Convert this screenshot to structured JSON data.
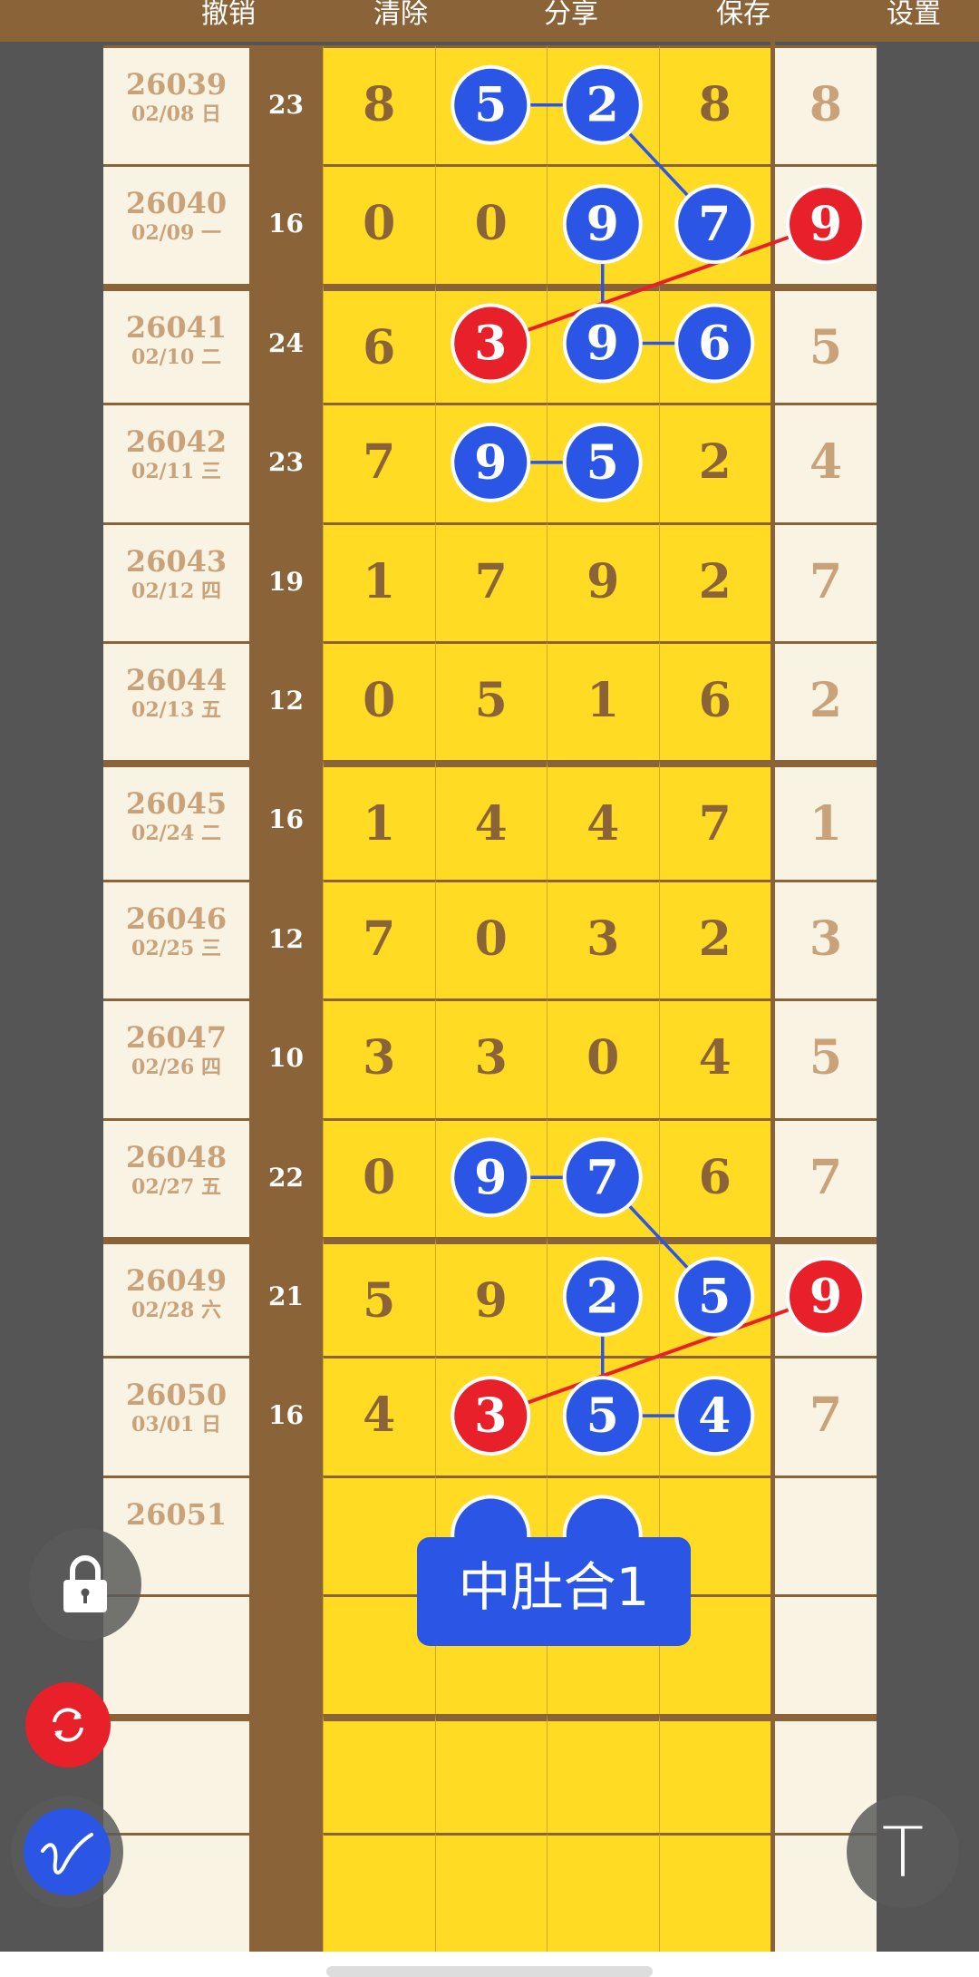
{
  "toolbar": {
    "undo": "撤销",
    "clear": "清除",
    "share": "分享",
    "save": "保存",
    "settings": "设置"
  },
  "rows": [
    {
      "issue": "26039",
      "date": "02/08 日",
      "sum": "23",
      "digits": [
        "8",
        "5",
        "2",
        "8"
      ],
      "right": "8"
    },
    {
      "issue": "26040",
      "date": "02/09 一",
      "sum": "16",
      "digits": [
        "0",
        "0",
        "9",
        "7"
      ],
      "right": "9"
    },
    {
      "issue": "26041",
      "date": "02/10 二",
      "sum": "24",
      "digits": [
        "6",
        "3",
        "9",
        "6"
      ],
      "right": "5"
    },
    {
      "issue": "26042",
      "date": "02/11 三",
      "sum": "23",
      "digits": [
        "7",
        "9",
        "5",
        "2"
      ],
      "right": "4"
    },
    {
      "issue": "26043",
      "date": "02/12 四",
      "sum": "19",
      "digits": [
        "1",
        "7",
        "9",
        "2"
      ],
      "right": "7"
    },
    {
      "issue": "26044",
      "date": "02/13 五",
      "sum": "12",
      "digits": [
        "0",
        "5",
        "1",
        "6"
      ],
      "right": "2"
    },
    {
      "issue": "26045",
      "date": "02/24 二",
      "sum": "16",
      "digits": [
        "1",
        "4",
        "4",
        "7"
      ],
      "right": "1"
    },
    {
      "issue": "26046",
      "date": "02/25 三",
      "sum": "12",
      "digits": [
        "7",
        "0",
        "3",
        "2"
      ],
      "right": "3"
    },
    {
      "issue": "26047",
      "date": "02/26 四",
      "sum": "10",
      "digits": [
        "3",
        "3",
        "0",
        "4"
      ],
      "right": "5"
    },
    {
      "issue": "26048",
      "date": "02/27 五",
      "sum": "22",
      "digits": [
        "0",
        "9",
        "7",
        "6"
      ],
      "right": "7"
    },
    {
      "issue": "26049",
      "date": "02/28 六",
      "sum": "21",
      "digits": [
        "5",
        "9",
        "2",
        "5"
      ],
      "right": "9"
    },
    {
      "issue": "26050",
      "date": "03/01 日",
      "sum": "16",
      "digits": [
        "4",
        "3",
        "5",
        "4"
      ],
      "right": "7"
    },
    {
      "issue": "26051",
      "date": "",
      "sum": "",
      "digits": [
        "",
        "",
        "",
        ""
      ],
      "right": ""
    },
    {
      "issue": "",
      "date": "",
      "sum": "",
      "digits": [
        "",
        "",
        "",
        ""
      ],
      "right": ""
    },
    {
      "issue": "",
      "date": "",
      "sum": "",
      "digits": [
        "",
        "",
        "",
        ""
      ],
      "right": ""
    },
    {
      "issue": "",
      "date": "",
      "sum": "",
      "digits": [
        "",
        "",
        "",
        ""
      ],
      "right": ""
    }
  ],
  "group_breaks_after": [
    1,
    5,
    9,
    13
  ],
  "colors": {
    "blue": "#2a55e5",
    "red": "#e8202a",
    "brown": "#8a6438",
    "yellow": "#ffdb24"
  },
  "marks": [
    {
      "row": 0,
      "col": 1,
      "color": "blue"
    },
    {
      "row": 0,
      "col": 2,
      "color": "blue"
    },
    {
      "row": 1,
      "col": 2,
      "color": "blue"
    },
    {
      "row": 1,
      "col": 3,
      "color": "blue"
    },
    {
      "row": 1,
      "col": 4,
      "color": "red"
    },
    {
      "row": 2,
      "col": 1,
      "color": "red"
    },
    {
      "row": 2,
      "col": 2,
      "color": "blue"
    },
    {
      "row": 2,
      "col": 3,
      "color": "blue"
    },
    {
      "row": 3,
      "col": 1,
      "color": "blue"
    },
    {
      "row": 3,
      "col": 2,
      "color": "blue"
    },
    {
      "row": 9,
      "col": 1,
      "color": "blue"
    },
    {
      "row": 9,
      "col": 2,
      "color": "blue"
    },
    {
      "row": 10,
      "col": 2,
      "color": "blue"
    },
    {
      "row": 10,
      "col": 3,
      "color": "blue"
    },
    {
      "row": 10,
      "col": 4,
      "color": "red"
    },
    {
      "row": 11,
      "col": 1,
      "color": "red"
    },
    {
      "row": 11,
      "col": 2,
      "color": "blue"
    },
    {
      "row": 11,
      "col": 3,
      "color": "blue"
    }
  ],
  "links": [
    {
      "from": [
        0,
        1
      ],
      "to": [
        0,
        2
      ],
      "color": "blue"
    },
    {
      "from": [
        0,
        2
      ],
      "to": [
        1,
        3
      ],
      "color": "blue"
    },
    {
      "from": [
        1,
        2
      ],
      "to": [
        2,
        2
      ],
      "color": "blue"
    },
    {
      "from": [
        2,
        2
      ],
      "to": [
        2,
        3
      ],
      "color": "blue"
    },
    {
      "from": [
        1,
        4
      ],
      "to": [
        2,
        1
      ],
      "color": "red"
    },
    {
      "from": [
        3,
        1
      ],
      "to": [
        3,
        2
      ],
      "color": "blue"
    },
    {
      "from": [
        9,
        1
      ],
      "to": [
        9,
        2
      ],
      "color": "blue"
    },
    {
      "from": [
        9,
        2
      ],
      "to": [
        10,
        3
      ],
      "color": "blue"
    },
    {
      "from": [
        10,
        2
      ],
      "to": [
        11,
        2
      ],
      "color": "blue"
    },
    {
      "from": [
        11,
        2
      ],
      "to": [
        11,
        3
      ],
      "color": "blue"
    },
    {
      "from": [
        10,
        4
      ],
      "to": [
        11,
        1
      ],
      "color": "red"
    }
  ],
  "tooltip": "中肚合1",
  "fabs": {
    "lock": "lock-icon",
    "refresh": "refresh-icon",
    "pen": "pen-icon",
    "text": "text-tool-icon"
  },
  "text_tool_glyph": "T"
}
